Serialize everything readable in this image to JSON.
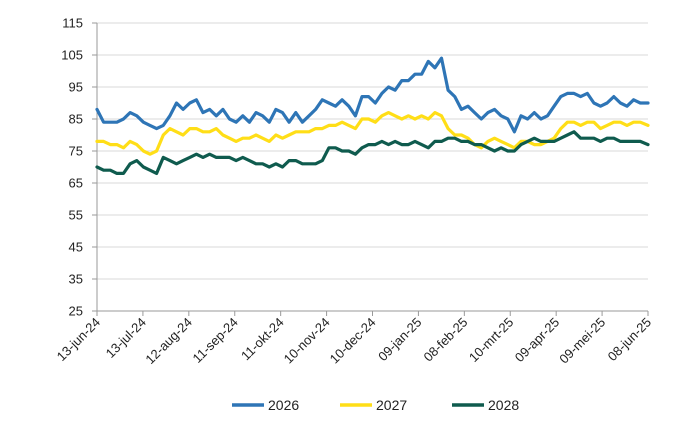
{
  "chart_data": {
    "type": "line",
    "title": "",
    "xlabel": "",
    "ylabel": "",
    "ylim": [
      25,
      115
    ],
    "yticks": [
      25,
      35,
      45,
      55,
      65,
      75,
      85,
      95,
      105,
      115
    ],
    "x_tick_labels": [
      "13-jun-24",
      "13-jul-24",
      "12-aug-24",
      "11-sep-24",
      "11-okt-24",
      "10-nov-24",
      "10-dec-24",
      "09-jan-25",
      "08-feb-25",
      "10-mrt-25",
      "09-apr-25",
      "09-mei-25",
      "08-jun-25"
    ],
    "grid": true,
    "legend_position": "bottom",
    "series": [
      {
        "name": "2026",
        "color": "#2e75b6",
        "values": [
          [
            0,
            88
          ],
          [
            6,
            84
          ],
          [
            12,
            84
          ],
          [
            18,
            84
          ],
          [
            24,
            85
          ],
          [
            30,
            87
          ],
          [
            36,
            86
          ],
          [
            42,
            84
          ],
          [
            48,
            83
          ],
          [
            54,
            82
          ],
          [
            60,
            83
          ],
          [
            66,
            86
          ],
          [
            72,
            90
          ],
          [
            78,
            88
          ],
          [
            84,
            90
          ],
          [
            90,
            91
          ],
          [
            96,
            87
          ],
          [
            102,
            88
          ],
          [
            108,
            86
          ],
          [
            114,
            88
          ],
          [
            120,
            85
          ],
          [
            126,
            84
          ],
          [
            132,
            86
          ],
          [
            138,
            84
          ],
          [
            144,
            87
          ],
          [
            150,
            86
          ],
          [
            156,
            84
          ],
          [
            162,
            88
          ],
          [
            168,
            87
          ],
          [
            174,
            84
          ],
          [
            180,
            87
          ],
          [
            186,
            84
          ],
          [
            192,
            86
          ],
          [
            198,
            88
          ],
          [
            204,
            91
          ],
          [
            210,
            90
          ],
          [
            216,
            89
          ],
          [
            222,
            91
          ],
          [
            228,
            89
          ],
          [
            234,
            86
          ],
          [
            240,
            92
          ],
          [
            246,
            92
          ],
          [
            252,
            90
          ],
          [
            258,
            93
          ],
          [
            264,
            95
          ],
          [
            270,
            94
          ],
          [
            276,
            97
          ],
          [
            282,
            97
          ],
          [
            288,
            99
          ],
          [
            294,
            99
          ],
          [
            300,
            103
          ],
          [
            306,
            101
          ],
          [
            312,
            104
          ],
          [
            318,
            94
          ],
          [
            324,
            92
          ],
          [
            330,
            88
          ],
          [
            336,
            89
          ],
          [
            342,
            87
          ],
          [
            348,
            85
          ],
          [
            354,
            87
          ],
          [
            360,
            88
          ],
          [
            366,
            86
          ],
          [
            372,
            85
          ],
          [
            378,
            81
          ],
          [
            384,
            86
          ],
          [
            390,
            85
          ],
          [
            396,
            87
          ],
          [
            402,
            85
          ],
          [
            408,
            86
          ],
          [
            414,
            89
          ],
          [
            420,
            92
          ],
          [
            426,
            93
          ],
          [
            432,
            93
          ],
          [
            438,
            92
          ],
          [
            444,
            93
          ],
          [
            450,
            90
          ],
          [
            456,
            89
          ],
          [
            462,
            90
          ],
          [
            468,
            92
          ],
          [
            474,
            90
          ],
          [
            480,
            89
          ],
          [
            486,
            91
          ],
          [
            492,
            90
          ],
          [
            499,
            90
          ]
        ]
      },
      {
        "name": "2027",
        "color": "#ffde17",
        "values": [
          [
            0,
            78
          ],
          [
            6,
            78
          ],
          [
            12,
            77
          ],
          [
            18,
            77
          ],
          [
            24,
            76
          ],
          [
            30,
            78
          ],
          [
            36,
            77
          ],
          [
            42,
            75
          ],
          [
            48,
            74
          ],
          [
            54,
            75
          ],
          [
            60,
            80
          ],
          [
            66,
            82
          ],
          [
            72,
            81
          ],
          [
            78,
            80
          ],
          [
            84,
            82
          ],
          [
            90,
            82
          ],
          [
            96,
            81
          ],
          [
            102,
            81
          ],
          [
            108,
            82
          ],
          [
            114,
            80
          ],
          [
            120,
            79
          ],
          [
            126,
            78
          ],
          [
            132,
            79
          ],
          [
            138,
            79
          ],
          [
            144,
            80
          ],
          [
            150,
            79
          ],
          [
            156,
            78
          ],
          [
            162,
            80
          ],
          [
            168,
            79
          ],
          [
            174,
            80
          ],
          [
            180,
            81
          ],
          [
            186,
            81
          ],
          [
            192,
            81
          ],
          [
            198,
            82
          ],
          [
            204,
            82
          ],
          [
            210,
            83
          ],
          [
            216,
            83
          ],
          [
            222,
            84
          ],
          [
            228,
            83
          ],
          [
            234,
            82
          ],
          [
            240,
            85
          ],
          [
            246,
            85
          ],
          [
            252,
            84
          ],
          [
            258,
            86
          ],
          [
            264,
            87
          ],
          [
            270,
            86
          ],
          [
            276,
            85
          ],
          [
            282,
            86
          ],
          [
            288,
            85
          ],
          [
            294,
            86
          ],
          [
            300,
            85
          ],
          [
            306,
            87
          ],
          [
            312,
            86
          ],
          [
            318,
            82
          ],
          [
            324,
            80
          ],
          [
            330,
            80
          ],
          [
            336,
            79
          ],
          [
            342,
            77
          ],
          [
            348,
            76
          ],
          [
            354,
            78
          ],
          [
            360,
            79
          ],
          [
            366,
            78
          ],
          [
            372,
            77
          ],
          [
            378,
            76
          ],
          [
            384,
            78
          ],
          [
            390,
            78
          ],
          [
            396,
            77
          ],
          [
            402,
            77
          ],
          [
            408,
            78
          ],
          [
            414,
            79
          ],
          [
            420,
            82
          ],
          [
            426,
            84
          ],
          [
            432,
            84
          ],
          [
            438,
            83
          ],
          [
            444,
            84
          ],
          [
            450,
            84
          ],
          [
            456,
            82
          ],
          [
            462,
            83
          ],
          [
            468,
            84
          ],
          [
            474,
            84
          ],
          [
            480,
            83
          ],
          [
            486,
            84
          ],
          [
            492,
            84
          ],
          [
            499,
            83
          ]
        ]
      },
      {
        "name": "2028",
        "color": "#0f5b4e",
        "values": [
          [
            0,
            70
          ],
          [
            6,
            69
          ],
          [
            12,
            69
          ],
          [
            18,
            68
          ],
          [
            24,
            68
          ],
          [
            30,
            71
          ],
          [
            36,
            72
          ],
          [
            42,
            70
          ],
          [
            48,
            69
          ],
          [
            54,
            68
          ],
          [
            60,
            73
          ],
          [
            66,
            72
          ],
          [
            72,
            71
          ],
          [
            78,
            72
          ],
          [
            84,
            73
          ],
          [
            90,
            74
          ],
          [
            96,
            73
          ],
          [
            102,
            74
          ],
          [
            108,
            73
          ],
          [
            114,
            73
          ],
          [
            120,
            73
          ],
          [
            126,
            72
          ],
          [
            132,
            73
          ],
          [
            138,
            72
          ],
          [
            144,
            71
          ],
          [
            150,
            71
          ],
          [
            156,
            70
          ],
          [
            162,
            71
          ],
          [
            168,
            70
          ],
          [
            174,
            72
          ],
          [
            180,
            72
          ],
          [
            186,
            71
          ],
          [
            192,
            71
          ],
          [
            198,
            71
          ],
          [
            204,
            72
          ],
          [
            210,
            76
          ],
          [
            216,
            76
          ],
          [
            222,
            75
          ],
          [
            228,
            75
          ],
          [
            234,
            74
          ],
          [
            240,
            76
          ],
          [
            246,
            77
          ],
          [
            252,
            77
          ],
          [
            258,
            78
          ],
          [
            264,
            77
          ],
          [
            270,
            78
          ],
          [
            276,
            77
          ],
          [
            282,
            77
          ],
          [
            288,
            78
          ],
          [
            294,
            77
          ],
          [
            300,
            76
          ],
          [
            306,
            78
          ],
          [
            312,
            78
          ],
          [
            318,
            79
          ],
          [
            324,
            79
          ],
          [
            330,
            78
          ],
          [
            336,
            78
          ],
          [
            342,
            77
          ],
          [
            348,
            77
          ],
          [
            354,
            76
          ],
          [
            360,
            75
          ],
          [
            366,
            76
          ],
          [
            372,
            75
          ],
          [
            378,
            75
          ],
          [
            384,
            77
          ],
          [
            390,
            78
          ],
          [
            396,
            79
          ],
          [
            402,
            78
          ],
          [
            408,
            78
          ],
          [
            414,
            78
          ],
          [
            420,
            79
          ],
          [
            426,
            80
          ],
          [
            432,
            81
          ],
          [
            438,
            79
          ],
          [
            444,
            79
          ],
          [
            450,
            79
          ],
          [
            456,
            78
          ],
          [
            462,
            79
          ],
          [
            468,
            79
          ],
          [
            474,
            78
          ],
          [
            480,
            78
          ],
          [
            486,
            78
          ],
          [
            492,
            78
          ],
          [
            499,
            77
          ]
        ]
      }
    ]
  }
}
